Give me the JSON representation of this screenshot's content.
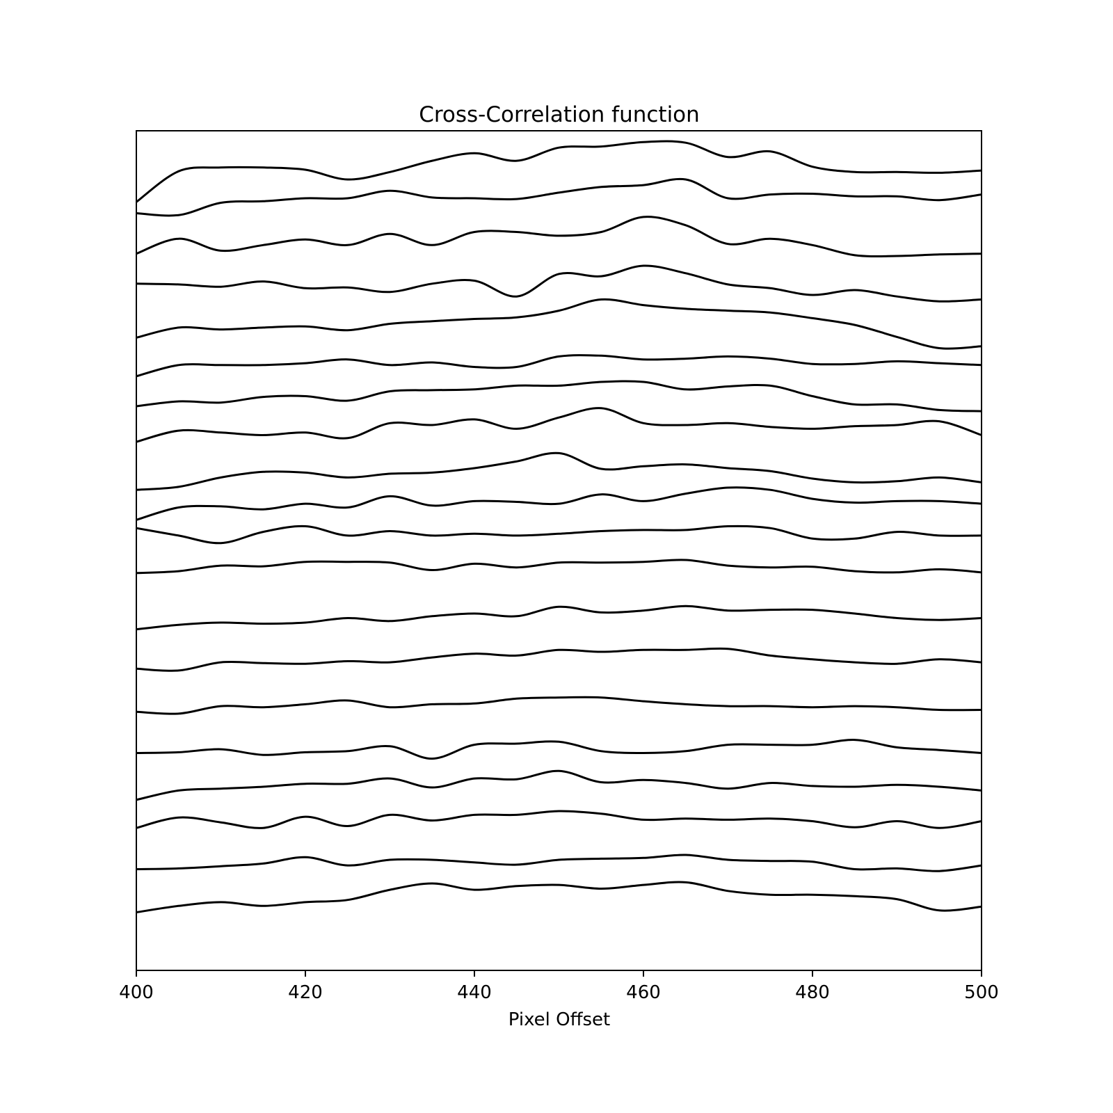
{
  "chart_data": {
    "type": "line",
    "title": "Cross-Correlation function",
    "xlabel": "Pixel Offset",
    "ylabel": "",
    "xlim": [
      400,
      500
    ],
    "xticks": [
      400,
      420,
      440,
      460,
      480,
      500
    ],
    "xtick_labels": [
      "400",
      "420",
      "440",
      "460",
      "480",
      "500"
    ],
    "y_ticks_shown": false,
    "grid": false,
    "legend": "none",
    "line_color": "#000000",
    "x": [
      400,
      405,
      410,
      415,
      420,
      425,
      430,
      435,
      440,
      445,
      450,
      455,
      460,
      465,
      470,
      475,
      480,
      485,
      490,
      495,
      500
    ],
    "series": [
      {
        "baseline": 20,
        "values": [
          -0.1,
          0.72,
          0.82,
          0.82,
          0.76,
          0.5,
          0.7,
          1.0,
          1.2,
          1.0,
          1.35,
          1.38,
          1.5,
          1.48,
          1.1,
          1.25,
          0.84,
          0.7,
          0.7,
          0.68,
          0.74
        ]
      },
      {
        "baseline": 19,
        "values": [
          0.6,
          0.55,
          0.88,
          0.92,
          1.0,
          1.0,
          1.2,
          1.02,
          1.0,
          0.98,
          1.15,
          1.3,
          1.35,
          1.5,
          1.0,
          1.1,
          1.12,
          1.05,
          1.05,
          0.95,
          1.1
        ]
      },
      {
        "baseline": 18,
        "values": [
          0.52,
          0.92,
          0.6,
          0.75,
          0.9,
          0.75,
          1.05,
          0.75,
          1.1,
          1.1,
          1.0,
          1.1,
          1.5,
          1.28,
          0.78,
          0.92,
          0.75,
          0.48,
          0.46,
          0.5,
          0.52
        ]
      },
      {
        "baseline": 17,
        "values": [
          0.72,
          0.7,
          0.64,
          0.78,
          0.6,
          0.62,
          0.5,
          0.72,
          0.8,
          0.38,
          0.98,
          0.92,
          1.2,
          1.0,
          0.7,
          0.6,
          0.42,
          0.55,
          0.38,
          0.25,
          0.3
        ]
      },
      {
        "baseline": 16,
        "values": [
          0.28,
          0.55,
          0.5,
          0.55,
          0.58,
          0.48,
          0.65,
          0.72,
          0.78,
          0.82,
          1.0,
          1.3,
          1.15,
          1.05,
          1.0,
          0.95,
          0.8,
          0.62,
          0.3,
          0.0,
          0.05
        ]
      },
      {
        "baseline": 15,
        "values": [
          0.25,
          0.55,
          0.55,
          0.55,
          0.6,
          0.7,
          0.55,
          0.62,
          0.5,
          0.5,
          0.78,
          0.8,
          0.7,
          0.72,
          0.78,
          0.72,
          0.58,
          0.58,
          0.65,
          0.6,
          0.55
        ]
      },
      {
        "baseline": 14,
        "values": [
          0.45,
          0.58,
          0.55,
          0.7,
          0.72,
          0.6,
          0.85,
          0.88,
          0.9,
          1.0,
          1.0,
          1.1,
          1.1,
          0.9,
          0.98,
          1.0,
          0.72,
          0.5,
          0.5,
          0.35,
          0.32
        ]
      },
      {
        "baseline": 13,
        "values": [
          0.5,
          0.8,
          0.75,
          0.68,
          0.75,
          0.6,
          1.0,
          0.95,
          1.1,
          0.85,
          1.15,
          1.4,
          1.0,
          0.95,
          1.0,
          0.9,
          0.85,
          0.92,
          0.95,
          1.05,
          0.68
        ]
      },
      {
        "baseline": 12,
        "values": [
          0.22,
          0.3,
          0.55,
          0.7,
          0.68,
          0.55,
          0.65,
          0.68,
          0.8,
          0.98,
          1.2,
          0.78,
          0.85,
          0.9,
          0.8,
          0.72,
          0.52,
          0.42,
          0.45,
          0.55,
          0.42
        ]
      },
      {
        "baseline": 11,
        "values": [
          0.42,
          0.75,
          0.78,
          0.7,
          0.85,
          0.75,
          1.05,
          0.8,
          0.92,
          0.9,
          0.85,
          1.1,
          0.92,
          1.12,
          1.28,
          1.22,
          0.98,
          0.88,
          0.92,
          0.92,
          0.85
        ]
      },
      {
        "baseline": 10,
        "values": [
          1.2,
          1.0,
          0.8,
          1.1,
          1.25,
          1.0,
          1.12,
          1.0,
          1.05,
          1.0,
          1.05,
          1.12,
          1.15,
          1.15,
          1.25,
          1.2,
          0.92,
          0.92,
          1.1,
          1.0,
          1.0
        ]
      },
      {
        "baseline": 9,
        "values": [
          1.0,
          1.05,
          1.2,
          1.18,
          1.3,
          1.3,
          1.28,
          1.08,
          1.25,
          1.15,
          1.28,
          1.28,
          1.3,
          1.35,
          1.2,
          1.15,
          1.17,
          1.05,
          1.02,
          1.1,
          1.02
        ]
      },
      {
        "baseline": 8,
        "values": [
          0.5,
          0.62,
          0.68,
          0.65,
          0.68,
          0.8,
          0.72,
          0.85,
          0.92,
          0.85,
          1.1,
          0.95,
          1.0,
          1.12,
          1.0,
          1.02,
          1.02,
          0.92,
          0.8,
          0.75,
          0.8
        ]
      },
      {
        "baseline": 7,
        "values": [
          0.45,
          0.4,
          0.62,
          0.6,
          0.58,
          0.65,
          0.62,
          0.75,
          0.85,
          0.8,
          0.95,
          0.9,
          0.95,
          0.95,
          0.98,
          0.8,
          0.7,
          0.62,
          0.58,
          0.7,
          0.62
        ]
      },
      {
        "baseline": 6,
        "values": [
          0.3,
          0.25,
          0.45,
          0.42,
          0.5,
          0.6,
          0.42,
          0.5,
          0.52,
          0.65,
          0.68,
          0.68,
          0.58,
          0.5,
          0.45,
          0.45,
          0.42,
          0.45,
          0.42,
          0.35,
          0.35
        ]
      },
      {
        "baseline": 5,
        "values": [
          0.2,
          0.22,
          0.3,
          0.15,
          0.22,
          0.25,
          0.38,
          0.05,
          0.42,
          0.45,
          0.5,
          0.25,
          0.2,
          0.25,
          0.42,
          0.42,
          0.42,
          0.55,
          0.35,
          0.28,
          0.2
        ]
      },
      {
        "baseline": 4,
        "values": [
          -0.05,
          0.2,
          0.25,
          0.3,
          0.38,
          0.38,
          0.52,
          0.28,
          0.52,
          0.5,
          0.72,
          0.42,
          0.48,
          0.4,
          0.25,
          0.4,
          0.32,
          0.3,
          0.35,
          0.3,
          0.2
        ]
      },
      {
        "baseline": 3,
        "values": [
          0.2,
          0.48,
          0.35,
          0.2,
          0.5,
          0.25,
          0.55,
          0.4,
          0.55,
          0.55,
          0.65,
          0.58,
          0.42,
          0.45,
          0.42,
          0.45,
          0.38,
          0.22,
          0.38,
          0.2,
          0.38
        ]
      },
      {
        "baseline": 2,
        "values": [
          0.1,
          0.12,
          0.18,
          0.25,
          0.42,
          0.2,
          0.35,
          0.35,
          0.28,
          0.22,
          0.35,
          0.38,
          0.4,
          0.48,
          0.35,
          0.32,
          0.3,
          0.1,
          0.12,
          0.05,
          0.2
        ]
      },
      {
        "baseline": 1,
        "values": [
          -0.05,
          0.12,
          0.22,
          0.12,
          0.22,
          0.28,
          0.55,
          0.72,
          0.55,
          0.65,
          0.68,
          0.58,
          0.68,
          0.75,
          0.52,
          0.42,
          0.42,
          0.38,
          0.3,
          0.0,
          0.1
        ]
      }
    ]
  }
}
